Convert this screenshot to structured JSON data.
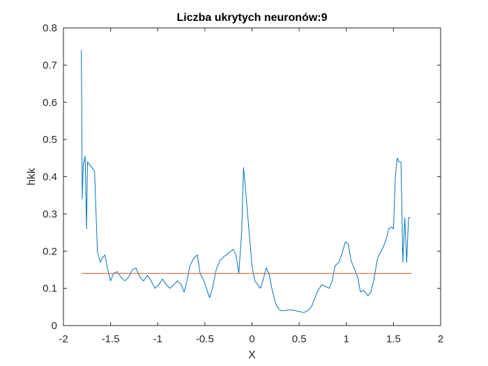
{
  "chart_data": {
    "type": "line",
    "title": "Liczba ukrytych neuronów:9",
    "xlabel": "X",
    "ylabel": "hkk",
    "xlim": [
      -2,
      2
    ],
    "ylim": [
      0,
      0.8
    ],
    "xticks": [
      -2,
      -1.5,
      -1,
      -0.5,
      0,
      0.5,
      1,
      1.5,
      2
    ],
    "xtick_labels": [
      "-2",
      "-1.5",
      "-1",
      "-0.5",
      "0",
      "0.5",
      "1",
      "1.5",
      "2"
    ],
    "yticks": [
      0,
      0.1,
      0.2,
      0.3,
      0.4,
      0.5,
      0.6,
      0.7,
      0.8
    ],
    "ytick_labels": [
      "0",
      "0.1",
      "0.2",
      "0.3",
      "0.4",
      "0.5",
      "0.6",
      "0.7",
      "0.8"
    ],
    "grid": false,
    "series": [
      {
        "color": "#0072BD",
        "x": [
          -1.81,
          -1.8,
          -1.79,
          -1.77,
          -1.755,
          -1.745,
          -1.67,
          -1.64,
          -1.61,
          -1.59,
          -1.56,
          -1.53,
          -1.5,
          -1.47,
          -1.43,
          -1.39,
          -1.35,
          -1.31,
          -1.27,
          -1.23,
          -1.19,
          -1.15,
          -1.11,
          -1.07,
          -1.03,
          -0.99,
          -0.95,
          -0.91,
          -0.87,
          -0.83,
          -0.79,
          -0.75,
          -0.72,
          -0.69,
          -0.66,
          -0.62,
          -0.58,
          -0.55,
          -0.51,
          -0.47,
          -0.45,
          -0.42,
          -0.38,
          -0.34,
          -0.3,
          -0.25,
          -0.2,
          -0.17,
          -0.14,
          -0.11,
          -0.09,
          -0.06,
          -0.03,
          0.0,
          0.03,
          0.06,
          0.09,
          0.12,
          0.15,
          0.18,
          0.21,
          0.25,
          0.28,
          0.31,
          0.34,
          0.38,
          0.42,
          0.46,
          0.5,
          0.55,
          0.59,
          0.63,
          0.66,
          0.7,
          0.74,
          0.78,
          0.82,
          0.85,
          0.88,
          0.92,
          0.95,
          0.99,
          1.02,
          1.05,
          1.09,
          1.12,
          1.15,
          1.18,
          1.2,
          1.23,
          1.26,
          1.29,
          1.31,
          1.33,
          1.36,
          1.39,
          1.42,
          1.45,
          1.48,
          1.5,
          1.52,
          1.54,
          1.56,
          1.58,
          1.6,
          1.62,
          1.64,
          1.66,
          1.68
        ],
        "y": [
          0.74,
          0.34,
          0.43,
          0.455,
          0.26,
          0.44,
          0.415,
          0.2,
          0.17,
          0.18,
          0.19,
          0.15,
          0.12,
          0.14,
          0.145,
          0.13,
          0.12,
          0.13,
          0.15,
          0.155,
          0.13,
          0.12,
          0.135,
          0.12,
          0.1,
          0.11,
          0.125,
          0.11,
          0.1,
          0.11,
          0.12,
          0.11,
          0.09,
          0.12,
          0.16,
          0.18,
          0.19,
          0.14,
          0.12,
          0.09,
          0.075,
          0.1,
          0.15,
          0.175,
          0.185,
          0.195,
          0.205,
          0.19,
          0.14,
          0.25,
          0.425,
          0.34,
          0.25,
          0.16,
          0.12,
          0.11,
          0.1,
          0.125,
          0.155,
          0.14,
          0.1,
          0.06,
          0.045,
          0.04,
          0.04,
          0.042,
          0.042,
          0.04,
          0.038,
          0.035,
          0.04,
          0.05,
          0.07,
          0.095,
          0.11,
          0.105,
          0.1,
          0.12,
          0.16,
          0.17,
          0.19,
          0.225,
          0.22,
          0.175,
          0.15,
          0.13,
          0.09,
          0.095,
          0.09,
          0.08,
          0.09,
          0.12,
          0.15,
          0.18,
          0.195,
          0.21,
          0.23,
          0.26,
          0.265,
          0.26,
          0.4,
          0.45,
          0.44,
          0.44,
          0.17,
          0.29,
          0.17,
          0.29,
          0.29
        ]
      },
      {
        "color": "#D95319",
        "x": [
          -1.81,
          1.69
        ],
        "y": [
          0.14,
          0.14
        ]
      }
    ]
  }
}
